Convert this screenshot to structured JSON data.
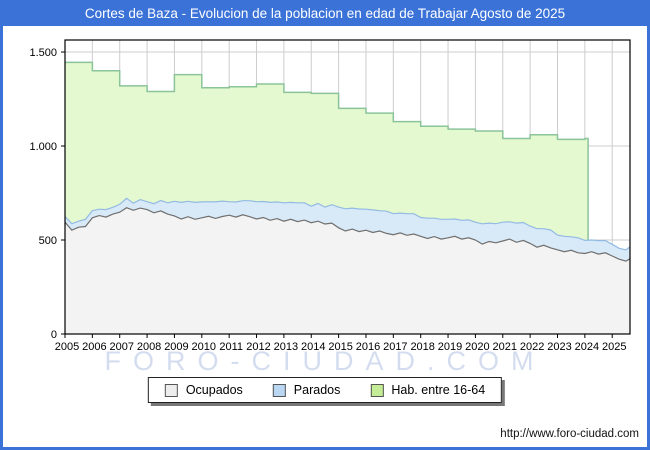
{
  "window": {
    "title": "Cortes de Baza - Evolucion de la poblacion en edad de Trabajar Agosto de 2025"
  },
  "watermark": "FORO-CIUDAD.COM",
  "footer": {
    "url": "http://www.foro-ciudad.com"
  },
  "colors": {
    "frame": "#3b72d8",
    "titlebar": "#3b72d8",
    "plot_border": "#000000",
    "gridline": "#cdcdcd",
    "ocupados_fill": "#f3f3f3",
    "ocupados_line": "#6f6f6f",
    "parados_fill": "#d8e9f7",
    "parados_line": "#93bae4",
    "habitantes_fill": "#e4f9cf",
    "habitantes_line": "#8bc49a",
    "watermark": "#b9c7e6"
  },
  "legend": {
    "items": [
      {
        "label": "Ocupados",
        "color": "#ededed"
      },
      {
        "label": "Parados",
        "color": "#b9d6f2"
      },
      {
        "label": "Hab. entre 16-64",
        "color": "#c5ed97"
      }
    ]
  },
  "chart_data": {
    "type": "area",
    "title": "Cortes de Baza - Evolucion de la poblacion en edad de Trabajar Agosto de 2025",
    "xlabel": "",
    "ylabel": "",
    "xlim": [
      2005,
      2025.65
    ],
    "ylim": [
      0,
      1564
    ],
    "grid": true,
    "legend_position": "bottom",
    "x_ticks": [
      2005,
      2006,
      2007,
      2008,
      2009,
      2010,
      2011,
      2012,
      2013,
      2014,
      2015,
      2016,
      2017,
      2018,
      2019,
      2020,
      2021,
      2022,
      2023,
      2024,
      2025
    ],
    "y_ticks": [
      {
        "value": 0,
        "label": "0"
      },
      {
        "value": 500,
        "label": "500"
      },
      {
        "value": 1000,
        "label": "1.000"
      },
      {
        "value": 1500,
        "label": "1.500"
      }
    ],
    "series": [
      {
        "name": "Ocupados",
        "type": "area",
        "fill": "#f3f3f3",
        "stroke": "#6f6f6f",
        "x": [
          2005,
          2005.25,
          2005.5,
          2005.75,
          2006,
          2006.25,
          2006.5,
          2006.75,
          2007,
          2007.25,
          2007.5,
          2007.75,
          2008,
          2008.25,
          2008.5,
          2008.75,
          2009,
          2009.25,
          2009.5,
          2009.75,
          2010,
          2010.25,
          2010.5,
          2010.75,
          2011,
          2011.25,
          2011.5,
          2011.75,
          2012,
          2012.25,
          2012.5,
          2012.75,
          2013,
          2013.25,
          2013.5,
          2013.75,
          2014,
          2014.25,
          2014.5,
          2014.75,
          2015,
          2015.25,
          2015.5,
          2015.75,
          2016,
          2016.25,
          2016.5,
          2016.75,
          2017,
          2017.25,
          2017.5,
          2017.75,
          2018,
          2018.25,
          2018.5,
          2018.75,
          2019,
          2019.25,
          2019.5,
          2019.75,
          2020,
          2020.25,
          2020.5,
          2020.75,
          2021,
          2021.25,
          2021.5,
          2021.75,
          2022,
          2022.25,
          2022.5,
          2022.75,
          2023,
          2023.25,
          2023.5,
          2023.75,
          2024,
          2024.25,
          2024.5,
          2024.75,
          2025,
          2025.25,
          2025.5,
          2025.65
        ],
        "values": [
          595,
          552,
          568,
          572,
          618,
          630,
          622,
          638,
          648,
          672,
          658,
          670,
          662,
          645,
          655,
          638,
          628,
          612,
          624,
          610,
          618,
          626,
          615,
          625,
          632,
          622,
          634,
          624,
          612,
          620,
          605,
          614,
          600,
          610,
          598,
          606,
          592,
          600,
          585,
          590,
          565,
          548,
          558,
          545,
          552,
          540,
          548,
          535,
          528,
          538,
          525,
          532,
          520,
          508,
          518,
          505,
          512,
          520,
          505,
          512,
          500,
          478,
          492,
          485,
          495,
          505,
          488,
          498,
          482,
          462,
          472,
          458,
          448,
          438,
          445,
          432,
          428,
          438,
          425,
          432,
          415,
          398,
          388,
          400
        ]
      },
      {
        "name": "Parados",
        "type": "area",
        "stacked_on": "Ocupados",
        "fill": "#d8e9f7",
        "stroke": "#93bae4",
        "x_ref": 0,
        "values": [
          30,
          35,
          32,
          38,
          38,
          34,
          40,
          36,
          42,
          50,
          38,
          45,
          42,
          48,
          55,
          60,
          78,
          88,
          82,
          90,
          85,
          78,
          88,
          82,
          72,
          80,
          75,
          85,
          92,
          85,
          95,
          88,
          98,
          90,
          100,
          92,
          88,
          95,
          90,
          98,
          110,
          118,
          112,
          120,
          112,
          120,
          108,
          118,
          112,
          105,
          115,
          108,
          100,
          108,
          98,
          105,
          98,
          92,
          100,
          95,
          95,
          108,
          98,
          102,
          100,
          92,
          102,
          95,
          92,
          98,
          88,
          95,
          78,
          82,
          72,
          80,
          70,
          62,
          72,
          65,
          62,
          58,
          60,
          64
        ]
      },
      {
        "name": "Hab. entre 16-64",
        "type": "step-area",
        "fill": "#e4f9cf",
        "stroke": "#8bc49a",
        "step_years": [
          2005,
          2006,
          2007,
          2008,
          2009,
          2010,
          2011,
          2012,
          2013,
          2014,
          2015,
          2016,
          2017,
          2018,
          2019,
          2020,
          2021,
          2022,
          2023,
          2024
        ],
        "values": [
          1445,
          1400,
          1320,
          1290,
          1380,
          1310,
          1315,
          1330,
          1285,
          1280,
          1200,
          1175,
          1130,
          1105,
          1090,
          1080,
          1040,
          1060,
          1035,
          1040
        ],
        "end_x": 2024.12
      }
    ]
  }
}
